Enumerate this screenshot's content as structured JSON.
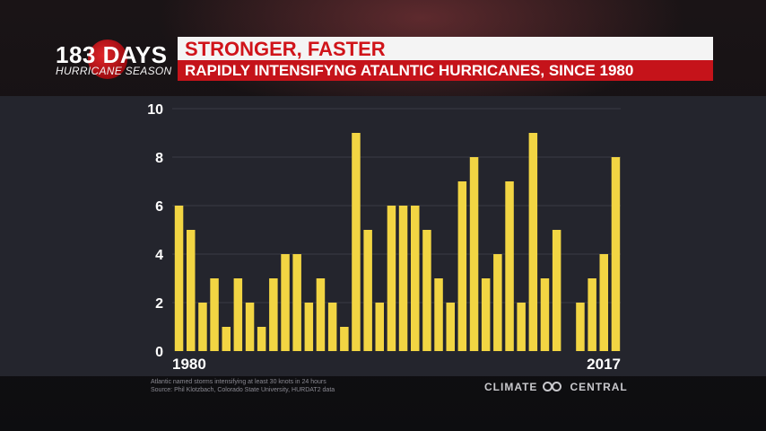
{
  "header": {
    "logo_main": "183 DAYS",
    "logo_sub": "HURRICANE SEASON",
    "title": "STRONGER, FASTER",
    "subtitle": "RAPIDLY INTENSIFYNG ATALNTIC HURRICANES, SINCE 1980"
  },
  "footer": {
    "source_line1": "Atlantic named storms intensifying at least 30 knots in 24 hours",
    "source_line2": "Source: Phil Klotzbach, Colorado State University, HURDAT2 data",
    "brand_left": "CLIMATE",
    "brand_right": "CENTRAL"
  },
  "colors": {
    "bar": "#f2d543",
    "title_red": "#d0141a",
    "subtitle_bg": "#c5131a",
    "panel": "#24252d"
  },
  "chart_data": {
    "type": "bar",
    "title": "RAPIDLY INTENSIFYNG ATALNTIC HURRICANES, SINCE 1980",
    "categories": [
      1980,
      1981,
      1982,
      1983,
      1984,
      1985,
      1986,
      1987,
      1988,
      1989,
      1990,
      1991,
      1992,
      1993,
      1994,
      1995,
      1996,
      1997,
      1998,
      1999,
      2000,
      2001,
      2002,
      2003,
      2004,
      2005,
      2006,
      2007,
      2008,
      2009,
      2010,
      2011,
      2012,
      2013,
      2014,
      2015,
      2016,
      2017
    ],
    "values": [
      6,
      5,
      2,
      3,
      1,
      3,
      2,
      1,
      3,
      4,
      4,
      2,
      3,
      2,
      1,
      9,
      5,
      2,
      6,
      6,
      6,
      5,
      3,
      2,
      7,
      8,
      3,
      4,
      7,
      2,
      9,
      3,
      5,
      0,
      2,
      3,
      4,
      8
    ],
    "x_labels_shown": {
      "first": "1980",
      "last": "2017"
    },
    "yticks": [
      "0",
      "2",
      "4",
      "6",
      "8",
      "10"
    ],
    "ylim": [
      0,
      10
    ],
    "grid": true,
    "xlabel": "",
    "ylabel": ""
  }
}
